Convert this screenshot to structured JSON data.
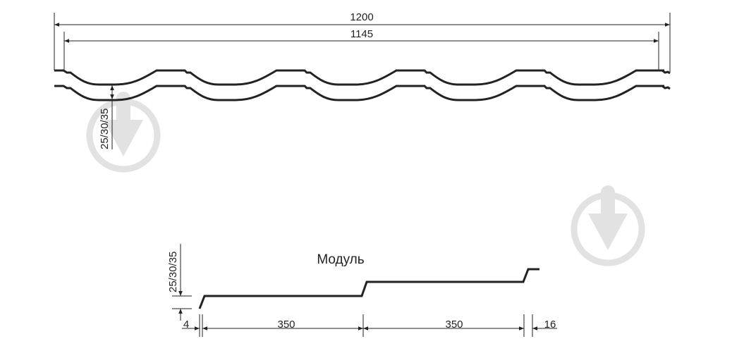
{
  "profile": {
    "overall_width_label": "1200",
    "useful_width_label": "1145",
    "height_label": "25/30/35"
  },
  "module": {
    "title": "Модуль",
    "height_label": "25/30/35",
    "step_label": "4",
    "module1_label": "350",
    "module2_label": "350",
    "end_label": "16"
  },
  "colors": {
    "line": "#222222",
    "watermark": "#e2e2e2"
  },
  "watermark_icon": "download-arrow-circle-icon"
}
